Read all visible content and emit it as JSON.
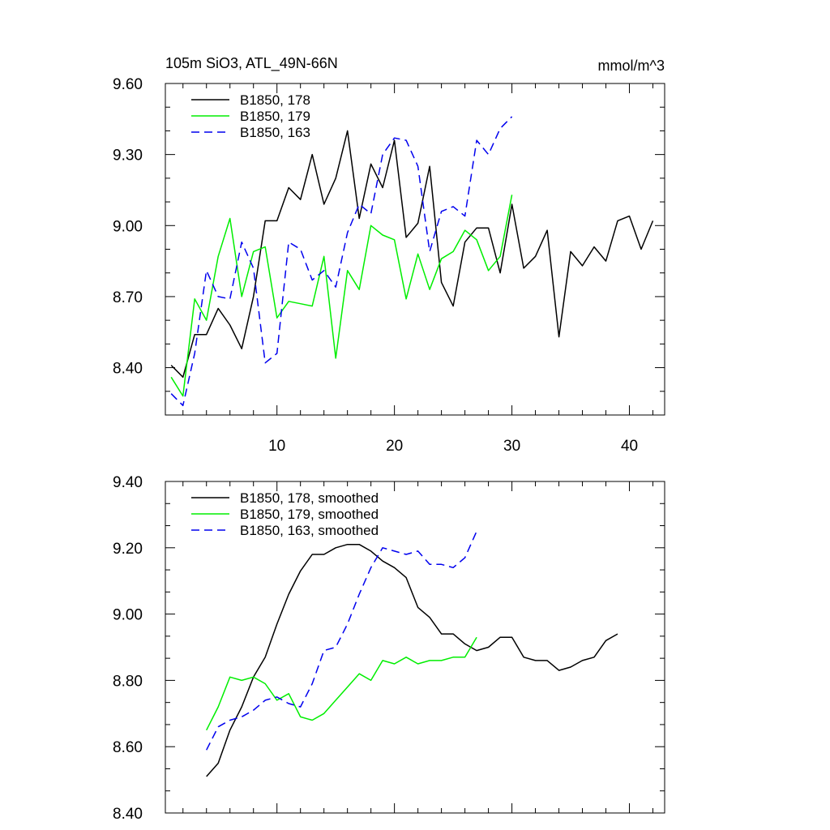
{
  "chart_data": [
    {
      "type": "line",
      "title_left": "105m SiO3, ATL_49N-66N",
      "title_right": "mmol/m^3",
      "xlim": [
        0.5,
        43
      ],
      "ylim": [
        8.2,
        9.6
      ],
      "yticks": [
        8.4,
        8.7,
        9.0,
        9.3,
        9.6
      ],
      "ytick_labels": [
        "8.40",
        "8.70",
        "9.00",
        "9.30",
        "9.60"
      ],
      "xticks": [
        10,
        20,
        30,
        40
      ],
      "xtick_labels": [
        "10",
        "20",
        "30",
        "40"
      ],
      "show_xtick_labels": true,
      "legend_placement": "top-left",
      "series": [
        {
          "name": "B1850, 178",
          "color": "#000000",
          "dash": "solid",
          "x": [
            1,
            2,
            3,
            4,
            5,
            6,
            7,
            8,
            9,
            10,
            11,
            12,
            13,
            14,
            15,
            16,
            17,
            18,
            19,
            20,
            21,
            22,
            23,
            24,
            25,
            26,
            27,
            28,
            29,
            30,
            31,
            32,
            33,
            34,
            35,
            36,
            37,
            38,
            39,
            40,
            41,
            42
          ],
          "y": [
            8.41,
            8.36,
            8.54,
            8.54,
            8.65,
            8.58,
            8.48,
            8.7,
            9.02,
            9.02,
            9.16,
            9.11,
            9.3,
            9.09,
            9.2,
            9.4,
            9.03,
            9.26,
            9.16,
            9.36,
            8.95,
            9.01,
            9.25,
            8.76,
            8.66,
            8.93,
            8.99,
            8.99,
            8.8,
            9.09,
            8.82,
            8.87,
            8.98,
            8.53,
            8.89,
            8.83,
            8.91,
            8.85,
            9.02,
            9.04,
            8.9,
            9.02
          ]
        },
        {
          "name": "B1850, 179",
          "color": "#00ee00",
          "dash": "solid",
          "x": [
            1,
            2,
            3,
            4,
            5,
            6,
            7,
            8,
            9,
            10,
            11,
            12,
            13,
            14,
            15,
            16,
            17,
            18,
            19,
            20,
            21,
            22,
            23,
            24,
            25,
            26,
            27,
            28,
            29,
            30
          ],
          "y": [
            8.36,
            8.28,
            8.69,
            8.6,
            8.87,
            9.03,
            8.7,
            8.89,
            8.91,
            8.61,
            8.68,
            8.67,
            8.66,
            8.87,
            8.44,
            8.81,
            8.73,
            9.0,
            8.96,
            8.94,
            8.69,
            8.88,
            8.73,
            8.86,
            8.89,
            8.98,
            8.94,
            8.81,
            8.87,
            9.13
          ]
        },
        {
          "name": "B1850, 163",
          "color": "#0000ee",
          "dash": "dashed",
          "x": [
            1,
            2,
            3,
            4,
            5,
            6,
            7,
            8,
            9,
            10,
            11,
            12,
            13,
            14,
            15,
            16,
            17,
            18,
            19,
            20,
            21,
            22,
            23,
            24,
            25,
            26,
            27,
            28,
            29,
            30
          ],
          "y": [
            8.29,
            8.24,
            8.46,
            8.81,
            8.7,
            8.69,
            8.93,
            8.82,
            8.42,
            8.46,
            8.93,
            8.9,
            8.77,
            8.81,
            8.74,
            8.97,
            9.09,
            9.05,
            9.3,
            9.37,
            9.36,
            9.25,
            8.89,
            9.06,
            9.08,
            9.04,
            9.36,
            9.3,
            9.41,
            9.46
          ]
        }
      ]
    },
    {
      "type": "line",
      "xlim": [
        0.5,
        43
      ],
      "ylim": [
        8.4,
        9.4
      ],
      "yticks": [
        8.4,
        8.6,
        8.8,
        9.0,
        9.2,
        9.4
      ],
      "ytick_labels": [
        "8.40",
        "8.60",
        "8.80",
        "9.00",
        "9.20",
        "9.40"
      ],
      "xticks": [
        10,
        20,
        30,
        40
      ],
      "show_xtick_labels": false,
      "legend_placement": "top-left",
      "series": [
        {
          "name": "B1850, 178, smoothed",
          "color": "#000000",
          "dash": "solid",
          "x": [
            4,
            5,
            6,
            7,
            8,
            9,
            10,
            11,
            12,
            13,
            14,
            15,
            16,
            17,
            18,
            19,
            20,
            21,
            22,
            23,
            24,
            25,
            26,
            27,
            28,
            29,
            30,
            31,
            32,
            33,
            34,
            35,
            36,
            37,
            38,
            39
          ],
          "y": [
            8.51,
            8.55,
            8.65,
            8.72,
            8.81,
            8.87,
            8.97,
            9.06,
            9.13,
            9.18,
            9.18,
            9.2,
            9.21,
            9.21,
            9.19,
            9.16,
            9.14,
            9.11,
            9.02,
            8.99,
            8.94,
            8.94,
            8.91,
            8.89,
            8.9,
            8.93,
            8.93,
            8.87,
            8.86,
            8.86,
            8.83,
            8.84,
            8.86,
            8.87,
            8.92,
            8.94
          ]
        },
        {
          "name": "B1850, 179, smoothed",
          "color": "#00ee00",
          "dash": "solid",
          "x": [
            4,
            5,
            6,
            7,
            8,
            9,
            10,
            11,
            12,
            13,
            14,
            15,
            16,
            17,
            18,
            19,
            20,
            21,
            22,
            23,
            24,
            25,
            26,
            27
          ],
          "y": [
            8.65,
            8.72,
            8.81,
            8.8,
            8.81,
            8.79,
            8.74,
            8.76,
            8.69,
            8.68,
            8.7,
            8.74,
            8.78,
            8.82,
            8.8,
            8.86,
            8.85,
            8.87,
            8.85,
            8.86,
            8.86,
            8.87,
            8.87,
            8.93
          ]
        },
        {
          "name": "B1850, 163, smoothed",
          "color": "#0000ee",
          "dash": "dashed",
          "x": [
            4,
            5,
            6,
            7,
            8,
            9,
            10,
            11,
            12,
            13,
            14,
            15,
            16,
            17,
            18,
            19,
            20,
            21,
            22,
            23,
            24,
            25,
            26,
            27
          ],
          "y": [
            8.59,
            8.66,
            8.68,
            8.69,
            8.71,
            8.74,
            8.75,
            8.73,
            8.72,
            8.79,
            8.89,
            8.9,
            8.97,
            9.06,
            9.14,
            9.2,
            9.19,
            9.18,
            9.19,
            9.15,
            9.15,
            9.14,
            9.17,
            9.25
          ]
        }
      ]
    }
  ]
}
